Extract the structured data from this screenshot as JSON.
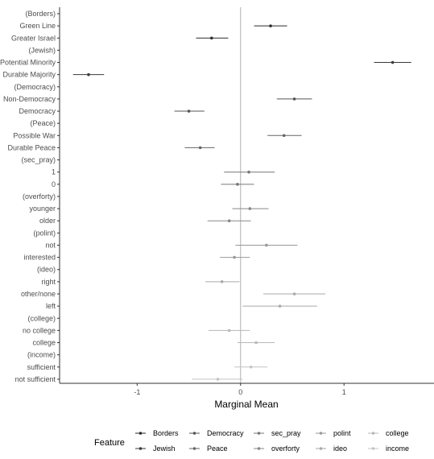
{
  "chart_data": {
    "type": "scatter",
    "xlabel": "Marginal Mean",
    "xlim": [
      -1.75,
      1.87
    ],
    "x_ticks": [
      -1,
      0,
      1
    ],
    "x_tick_labels": [
      "-1",
      "0",
      "1"
    ],
    "reference_line": 0,
    "rows": [
      {
        "label": "(Borders)",
        "value": null,
        "low": null,
        "high": null,
        "feature": "Borders"
      },
      {
        "label": "Green Line",
        "value": 0.29,
        "low": 0.13,
        "high": 0.45,
        "feature": "Borders"
      },
      {
        "label": "Greater Israel",
        "value": -0.28,
        "low": -0.43,
        "high": -0.12,
        "feature": "Borders"
      },
      {
        "label": "(Jewish)",
        "value": null,
        "low": null,
        "high": null,
        "feature": "Jewish"
      },
      {
        "label": "Potential Minority",
        "value": 1.47,
        "low": 1.29,
        "high": 1.65,
        "feature": "Jewish"
      },
      {
        "label": "Durable Majority",
        "value": -1.47,
        "low": -1.62,
        "high": -1.32,
        "feature": "Jewish"
      },
      {
        "label": "(Democracy)",
        "value": null,
        "low": null,
        "high": null,
        "feature": "Democracy"
      },
      {
        "label": "Non-Democracy",
        "value": 0.52,
        "low": 0.35,
        "high": 0.69,
        "feature": "Democracy"
      },
      {
        "label": "Democracy",
        "value": -0.5,
        "low": -0.64,
        "high": -0.35,
        "feature": "Democracy"
      },
      {
        "label": "(Peace)",
        "value": null,
        "low": null,
        "high": null,
        "feature": "Peace"
      },
      {
        "label": "Possible War",
        "value": 0.42,
        "low": 0.26,
        "high": 0.59,
        "feature": "Peace"
      },
      {
        "label": "Durable Peace",
        "value": -0.39,
        "low": -0.54,
        "high": -0.25,
        "feature": "Peace"
      },
      {
        "label": "(sec_pray)",
        "value": null,
        "low": null,
        "high": null,
        "feature": "sec_pray"
      },
      {
        "label": "1",
        "value": 0.08,
        "low": -0.16,
        "high": 0.33,
        "feature": "sec_pray"
      },
      {
        "label": "0",
        "value": -0.03,
        "low": -0.19,
        "high": 0.13,
        "feature": "sec_pray"
      },
      {
        "label": "(overforty)",
        "value": null,
        "low": null,
        "high": null,
        "feature": "overforty"
      },
      {
        "label": "younger",
        "value": 0.09,
        "low": -0.08,
        "high": 0.27,
        "feature": "overforty"
      },
      {
        "label": "older",
        "value": -0.11,
        "low": -0.32,
        "high": 0.1,
        "feature": "overforty"
      },
      {
        "label": "(polint)",
        "value": null,
        "low": null,
        "high": null,
        "feature": "polint"
      },
      {
        "label": "not",
        "value": 0.25,
        "low": -0.05,
        "high": 0.55,
        "feature": "polint"
      },
      {
        "label": "interested",
        "value": -0.06,
        "low": -0.2,
        "high": 0.09,
        "feature": "polint"
      },
      {
        "label": "(ideo)",
        "value": null,
        "low": null,
        "high": null,
        "feature": "ideo"
      },
      {
        "label": "right",
        "value": -0.18,
        "low": -0.34,
        "high": -0.01,
        "feature": "ideo"
      },
      {
        "label": "other/none",
        "value": 0.52,
        "low": 0.22,
        "high": 0.82,
        "feature": "ideo"
      },
      {
        "label": "left",
        "value": 0.38,
        "low": 0.02,
        "high": 0.74,
        "feature": "ideo"
      },
      {
        "label": "(college)",
        "value": null,
        "low": null,
        "high": null,
        "feature": "college"
      },
      {
        "label": "no college",
        "value": -0.11,
        "low": -0.31,
        "high": 0.09,
        "feature": "college"
      },
      {
        "label": "college",
        "value": 0.15,
        "low": -0.03,
        "high": 0.33,
        "feature": "college"
      },
      {
        "label": "(income)",
        "value": null,
        "low": null,
        "high": null,
        "feature": "income"
      },
      {
        "label": "sufficient",
        "value": 0.1,
        "low": -0.06,
        "high": 0.26,
        "feature": "income"
      },
      {
        "label": "not sufficient",
        "value": -0.22,
        "low": -0.47,
        "high": 0.02,
        "feature": "income"
      }
    ],
    "legend": {
      "title": "Feature",
      "placement": "bottom",
      "entries": [
        {
          "name": "Borders",
          "color": "#2a2a2a"
        },
        {
          "name": "Jewish",
          "color": "#3a3a3a"
        },
        {
          "name": "Democracy",
          "color": "#555555"
        },
        {
          "name": "Peace",
          "color": "#666666"
        },
        {
          "name": "sec_pray",
          "color": "#777777"
        },
        {
          "name": "overforty",
          "color": "#888888"
        },
        {
          "name": "polint",
          "color": "#999999"
        },
        {
          "name": "ideo",
          "color": "#a9a9a9"
        },
        {
          "name": "college",
          "color": "#b8b8b8"
        },
        {
          "name": "income",
          "color": "#c4c4c4"
        }
      ]
    },
    "grid": false,
    "colors": {
      "reference_line": "#b0b0b0",
      "axis": "#333333"
    }
  }
}
